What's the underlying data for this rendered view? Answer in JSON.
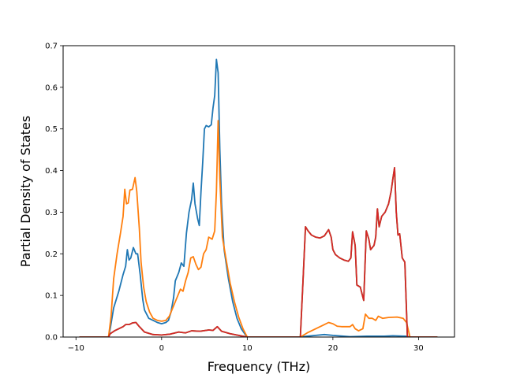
{
  "chart_data": {
    "type": "line",
    "title": "",
    "xlabel": "Frequency (THz)",
    "ylabel": "Partial Density of States",
    "xlim": [
      -11.5,
      34.2
    ],
    "ylim": [
      0,
      0.7
    ],
    "xticks": [
      -10,
      0,
      10,
      20,
      30
    ],
    "xtick_labels": [
      "−10",
      "0",
      "10",
      "20",
      "30"
    ],
    "yticks": [
      0.0,
      0.1,
      0.2,
      0.3,
      0.4,
      0.5,
      0.6,
      0.7
    ],
    "ytick_labels": [
      "0.0",
      "0.1",
      "0.2",
      "0.3",
      "0.4",
      "0.5",
      "0.6",
      "0.7"
    ],
    "grid": false,
    "legend": "none",
    "series": [
      {
        "color": "#1f77b4",
        "points": [
          [
            -9.6,
            0.0
          ],
          [
            -6.2,
            0.0
          ],
          [
            -6.0,
            0.02
          ],
          [
            -5.6,
            0.07
          ],
          [
            -5.0,
            0.11
          ],
          [
            -4.5,
            0.15
          ],
          [
            -4.2,
            0.17
          ],
          [
            -4.0,
            0.21
          ],
          [
            -3.8,
            0.185
          ],
          [
            -3.6,
            0.19
          ],
          [
            -3.3,
            0.215
          ],
          [
            -3.0,
            0.2
          ],
          [
            -2.8,
            0.2
          ],
          [
            -2.5,
            0.15
          ],
          [
            -2.2,
            0.09
          ],
          [
            -2.0,
            0.065
          ],
          [
            -1.5,
            0.045
          ],
          [
            -1.0,
            0.04
          ],
          [
            -0.5,
            0.035
          ],
          [
            0.0,
            0.032
          ],
          [
            0.5,
            0.035
          ],
          [
            0.8,
            0.04
          ],
          [
            1.1,
            0.06
          ],
          [
            1.4,
            0.095
          ],
          [
            1.6,
            0.135
          ],
          [
            2.0,
            0.155
          ],
          [
            2.3,
            0.178
          ],
          [
            2.6,
            0.17
          ],
          [
            2.9,
            0.25
          ],
          [
            3.2,
            0.3
          ],
          [
            3.5,
            0.33
          ],
          [
            3.7,
            0.37
          ],
          [
            3.9,
            0.32
          ],
          [
            4.2,
            0.285
          ],
          [
            4.4,
            0.268
          ],
          [
            4.6,
            0.35
          ],
          [
            4.8,
            0.42
          ],
          [
            5.0,
            0.5
          ],
          [
            5.2,
            0.508
          ],
          [
            5.5,
            0.505
          ],
          [
            5.8,
            0.51
          ],
          [
            6.0,
            0.55
          ],
          [
            6.2,
            0.58
          ],
          [
            6.4,
            0.667
          ],
          [
            6.6,
            0.635
          ],
          [
            6.8,
            0.45
          ],
          [
            7.0,
            0.32
          ],
          [
            7.3,
            0.21
          ],
          [
            7.8,
            0.14
          ],
          [
            8.3,
            0.085
          ],
          [
            8.8,
            0.045
          ],
          [
            9.3,
            0.02
          ],
          [
            9.7,
            0.008
          ],
          [
            10.0,
            0.0
          ],
          [
            16.2,
            0.0
          ],
          [
            17.0,
            0.002
          ],
          [
            18.0,
            0.004
          ],
          [
            19.0,
            0.006
          ],
          [
            20.0,
            0.004
          ],
          [
            22.0,
            0.001
          ],
          [
            24.0,
            0.002
          ],
          [
            26.0,
            0.002
          ],
          [
            27.0,
            0.003
          ],
          [
            28.5,
            0.002
          ],
          [
            29.0,
            0.0
          ],
          [
            32.2,
            0.0
          ]
        ]
      },
      {
        "color": "#ff7f0e",
        "points": [
          [
            -9.6,
            0.0
          ],
          [
            -6.2,
            0.0
          ],
          [
            -5.9,
            0.05
          ],
          [
            -5.6,
            0.14
          ],
          [
            -5.2,
            0.2
          ],
          [
            -4.8,
            0.25
          ],
          [
            -4.5,
            0.29
          ],
          [
            -4.3,
            0.355
          ],
          [
            -4.1,
            0.32
          ],
          [
            -3.9,
            0.322
          ],
          [
            -3.7,
            0.353
          ],
          [
            -3.4,
            0.355
          ],
          [
            -3.1,
            0.383
          ],
          [
            -2.9,
            0.35
          ],
          [
            -2.6,
            0.26
          ],
          [
            -2.4,
            0.18
          ],
          [
            -2.1,
            0.12
          ],
          [
            -1.8,
            0.085
          ],
          [
            -1.4,
            0.06
          ],
          [
            -1.0,
            0.045
          ],
          [
            -0.5,
            0.04
          ],
          [
            0.0,
            0.038
          ],
          [
            0.5,
            0.04
          ],
          [
            0.9,
            0.05
          ],
          [
            1.3,
            0.07
          ],
          [
            1.8,
            0.095
          ],
          [
            2.2,
            0.115
          ],
          [
            2.5,
            0.11
          ],
          [
            2.8,
            0.135
          ],
          [
            3.1,
            0.155
          ],
          [
            3.4,
            0.19
          ],
          [
            3.7,
            0.193
          ],
          [
            4.0,
            0.175
          ],
          [
            4.3,
            0.162
          ],
          [
            4.6,
            0.168
          ],
          [
            4.9,
            0.2
          ],
          [
            5.2,
            0.21
          ],
          [
            5.5,
            0.24
          ],
          [
            5.9,
            0.235
          ],
          [
            6.2,
            0.255
          ],
          [
            6.4,
            0.35
          ],
          [
            6.6,
            0.52
          ],
          [
            6.8,
            0.38
          ],
          [
            7.1,
            0.24
          ],
          [
            7.5,
            0.19
          ],
          [
            8.0,
            0.13
          ],
          [
            8.5,
            0.085
          ],
          [
            9.0,
            0.048
          ],
          [
            9.5,
            0.02
          ],
          [
            10.0,
            0.0
          ],
          [
            16.2,
            0.0
          ],
          [
            17.0,
            0.01
          ],
          [
            18.0,
            0.02
          ],
          [
            19.0,
            0.03
          ],
          [
            19.5,
            0.035
          ],
          [
            20.0,
            0.032
          ],
          [
            20.5,
            0.026
          ],
          [
            21.0,
            0.025
          ],
          [
            22.0,
            0.025
          ],
          [
            22.3,
            0.03
          ],
          [
            22.6,
            0.02
          ],
          [
            23.0,
            0.015
          ],
          [
            23.5,
            0.02
          ],
          [
            23.8,
            0.055
          ],
          [
            24.2,
            0.045
          ],
          [
            24.6,
            0.045
          ],
          [
            25.0,
            0.04
          ],
          [
            25.3,
            0.05
          ],
          [
            25.8,
            0.045
          ],
          [
            26.5,
            0.047
          ],
          [
            27.5,
            0.048
          ],
          [
            28.2,
            0.045
          ],
          [
            28.6,
            0.035
          ],
          [
            29.0,
            0.0
          ],
          [
            32.2,
            0.0
          ]
        ]
      },
      {
        "color": "#2ca02c",
        "points": [
          [
            -9.6,
            0.0
          ],
          [
            -6.2,
            0.0
          ],
          [
            -6.0,
            0.008
          ],
          [
            -5.5,
            0.015
          ],
          [
            -5.0,
            0.02
          ],
          [
            -4.5,
            0.025
          ],
          [
            -4.2,
            0.03
          ],
          [
            -3.8,
            0.03
          ],
          [
            -3.4,
            0.034
          ],
          [
            -3.0,
            0.035
          ],
          [
            -2.6,
            0.025
          ],
          [
            -2.0,
            0.012
          ],
          [
            -1.0,
            0.006
          ],
          [
            0.0,
            0.005
          ],
          [
            1.0,
            0.007
          ],
          [
            2.0,
            0.012
          ],
          [
            2.8,
            0.01
          ],
          [
            3.5,
            0.015
          ],
          [
            4.5,
            0.014
          ],
          [
            5.5,
            0.017
          ],
          [
            6.0,
            0.016
          ],
          [
            6.5,
            0.025
          ],
          [
            7.0,
            0.014
          ],
          [
            8.0,
            0.008
          ],
          [
            9.0,
            0.004
          ],
          [
            10.0,
            0.0
          ],
          [
            16.2,
            0.0
          ],
          [
            16.5,
            0.13
          ],
          [
            16.8,
            0.265
          ],
          [
            17.1,
            0.255
          ],
          [
            17.5,
            0.245
          ],
          [
            18.0,
            0.24
          ],
          [
            18.5,
            0.238
          ],
          [
            19.0,
            0.243
          ],
          [
            19.5,
            0.258
          ],
          [
            19.8,
            0.24
          ],
          [
            20.0,
            0.21
          ],
          [
            20.3,
            0.198
          ],
          [
            20.8,
            0.19
          ],
          [
            21.3,
            0.185
          ],
          [
            21.8,
            0.182
          ],
          [
            22.1,
            0.19
          ],
          [
            22.3,
            0.253
          ],
          [
            22.6,
            0.22
          ],
          [
            22.8,
            0.125
          ],
          [
            23.2,
            0.12
          ],
          [
            23.6,
            0.088
          ],
          [
            23.9,
            0.255
          ],
          [
            24.2,
            0.235
          ],
          [
            24.4,
            0.21
          ],
          [
            24.8,
            0.22
          ],
          [
            25.0,
            0.24
          ],
          [
            25.2,
            0.308
          ],
          [
            25.4,
            0.265
          ],
          [
            25.7,
            0.29
          ],
          [
            26.1,
            0.3
          ],
          [
            26.5,
            0.32
          ],
          [
            26.8,
            0.35
          ],
          [
            27.0,
            0.38
          ],
          [
            27.2,
            0.407
          ],
          [
            27.4,
            0.3
          ],
          [
            27.6,
            0.245
          ],
          [
            27.8,
            0.248
          ],
          [
            28.1,
            0.19
          ],
          [
            28.4,
            0.18
          ],
          [
            28.7,
            0.0
          ],
          [
            32.2,
            0.0
          ]
        ]
      },
      {
        "color": "#d62728",
        "points": [
          [
            -9.6,
            0.0
          ],
          [
            -6.2,
            0.0
          ],
          [
            -6.0,
            0.008
          ],
          [
            -5.5,
            0.015
          ],
          [
            -5.0,
            0.02
          ],
          [
            -4.5,
            0.025
          ],
          [
            -4.2,
            0.03
          ],
          [
            -3.8,
            0.03
          ],
          [
            -3.4,
            0.034
          ],
          [
            -3.0,
            0.035
          ],
          [
            -2.6,
            0.025
          ],
          [
            -2.0,
            0.012
          ],
          [
            -1.0,
            0.006
          ],
          [
            0.0,
            0.005
          ],
          [
            1.0,
            0.007
          ],
          [
            2.0,
            0.012
          ],
          [
            2.8,
            0.01
          ],
          [
            3.5,
            0.015
          ],
          [
            4.5,
            0.014
          ],
          [
            5.5,
            0.017
          ],
          [
            6.0,
            0.016
          ],
          [
            6.5,
            0.025
          ],
          [
            7.0,
            0.014
          ],
          [
            8.0,
            0.008
          ],
          [
            9.0,
            0.004
          ],
          [
            10.0,
            0.0
          ],
          [
            16.2,
            0.0
          ],
          [
            16.5,
            0.13
          ],
          [
            16.8,
            0.265
          ],
          [
            17.1,
            0.255
          ],
          [
            17.5,
            0.245
          ],
          [
            18.0,
            0.24
          ],
          [
            18.5,
            0.238
          ],
          [
            19.0,
            0.243
          ],
          [
            19.5,
            0.258
          ],
          [
            19.8,
            0.24
          ],
          [
            20.0,
            0.21
          ],
          [
            20.3,
            0.198
          ],
          [
            20.8,
            0.19
          ],
          [
            21.3,
            0.185
          ],
          [
            21.8,
            0.182
          ],
          [
            22.1,
            0.19
          ],
          [
            22.3,
            0.253
          ],
          [
            22.6,
            0.22
          ],
          [
            22.8,
            0.125
          ],
          [
            23.2,
            0.12
          ],
          [
            23.6,
            0.088
          ],
          [
            23.9,
            0.255
          ],
          [
            24.2,
            0.235
          ],
          [
            24.4,
            0.21
          ],
          [
            24.8,
            0.22
          ],
          [
            25.0,
            0.24
          ],
          [
            25.2,
            0.308
          ],
          [
            25.4,
            0.265
          ],
          [
            25.7,
            0.29
          ],
          [
            26.1,
            0.3
          ],
          [
            26.5,
            0.32
          ],
          [
            26.8,
            0.35
          ],
          [
            27.0,
            0.38
          ],
          [
            27.2,
            0.407
          ],
          [
            27.4,
            0.3
          ],
          [
            27.6,
            0.245
          ],
          [
            27.8,
            0.248
          ],
          [
            28.1,
            0.19
          ],
          [
            28.4,
            0.18
          ],
          [
            28.7,
            0.0
          ],
          [
            32.2,
            0.0
          ]
        ]
      }
    ]
  }
}
